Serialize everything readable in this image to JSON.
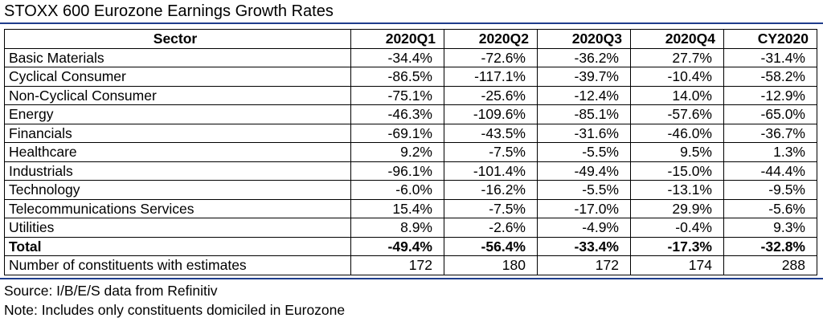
{
  "title": "STOXX 600 Eurozone Earnings Growth Rates",
  "colors": {
    "rule": "#1f3d8c",
    "text": "#000000",
    "grid": "#000000"
  },
  "table": {
    "headers": [
      "Sector",
      "2020Q1",
      "2020Q2",
      "2020Q3",
      "2020Q4",
      "CY2020"
    ],
    "rows": [
      {
        "sector": "Basic Materials",
        "values": [
          "-34.4%",
          "-72.6%",
          "-36.2%",
          "27.7%",
          "-31.4%"
        ]
      },
      {
        "sector": "Cyclical Consumer",
        "values": [
          "-86.5%",
          "-117.1%",
          "-39.7%",
          "-10.4%",
          "-58.2%"
        ]
      },
      {
        "sector": "Non-Cyclical Consumer",
        "values": [
          "-75.1%",
          "-25.6%",
          "-12.4%",
          "14.0%",
          "-12.9%"
        ]
      },
      {
        "sector": "Energy",
        "values": [
          "-46.3%",
          "-109.6%",
          "-85.1%",
          "-57.6%",
          "-65.0%"
        ]
      },
      {
        "sector": "Financials",
        "values": [
          "-69.1%",
          "-43.5%",
          "-31.6%",
          "-46.0%",
          "-36.7%"
        ]
      },
      {
        "sector": "Healthcare",
        "values": [
          "9.2%",
          "-7.5%",
          "-5.5%",
          "9.5%",
          "1.3%"
        ]
      },
      {
        "sector": "Industrials",
        "values": [
          "-96.1%",
          "-101.4%",
          "-49.4%",
          "-15.0%",
          "-44.4%"
        ]
      },
      {
        "sector": "Technology",
        "values": [
          "-6.0%",
          "-16.2%",
          "-5.5%",
          "-13.1%",
          "-9.5%"
        ]
      },
      {
        "sector": "Telecommunications Services",
        "values": [
          "15.4%",
          "-7.5%",
          "-17.0%",
          "29.9%",
          "-5.6%"
        ]
      },
      {
        "sector": "Utilities",
        "values": [
          "8.9%",
          "-2.6%",
          "-4.9%",
          "-0.4%",
          "9.3%"
        ]
      }
    ],
    "total": {
      "sector": "Total",
      "values": [
        "-49.4%",
        "-56.4%",
        "-33.4%",
        "-17.3%",
        "-32.8%"
      ]
    },
    "constituents": {
      "sector": "Number of constituents with estimates",
      "values": [
        "172",
        "180",
        "172",
        "174",
        "288"
      ]
    }
  },
  "footer": {
    "source": "Source: I/B/E/S data from Refinitiv",
    "note": "Note: Includes only constituents domiciled in Eurozone"
  }
}
